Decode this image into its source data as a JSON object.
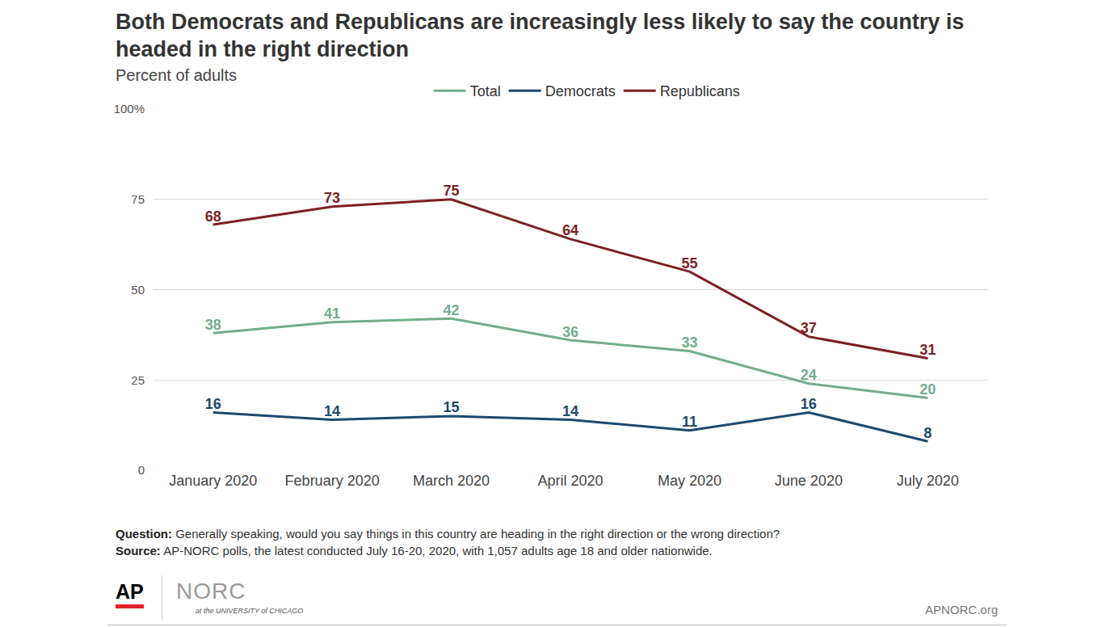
{
  "chart_data": {
    "type": "line",
    "title": "Both Democrats and Republicans are increasingly less likely to say the country is headed in the right direction",
    "subtitle": "Percent of adults",
    "categories": [
      "January 2020",
      "February 2020",
      "March 2020",
      "April 2020",
      "May 2020",
      "June 2020",
      "July 2020"
    ],
    "series": [
      {
        "name": "Total",
        "color": "#72ad8c",
        "values": [
          38,
          41,
          42,
          36,
          33,
          24,
          20
        ]
      },
      {
        "name": "Democrats",
        "color": "#1c4a6e",
        "values": [
          16,
          14,
          15,
          14,
          11,
          16,
          8
        ]
      },
      {
        "name": "Republicans",
        "color": "#7d1f24",
        "values": [
          68,
          73,
          75,
          64,
          55,
          37,
          31
        ]
      }
    ],
    "ylim": [
      0,
      100
    ],
    "yticks": [
      0,
      25,
      50,
      75,
      {
        "value": 100,
        "label": "100%"
      }
    ],
    "grid": true,
    "data_labels": true,
    "legend": "top",
    "notes": [
      {
        "label": "Question:",
        "text": "Generally speaking, would you say things in this country are heading in the right direction or the wrong direction?"
      },
      {
        "label": "Source:",
        "text": "AP-NORC polls, the latest conducted July 16-20, 2020, with 1,057 adults age 18 and older nationwide."
      }
    ],
    "logos": [
      "AP",
      "NORC",
      "at the UNIVERSITY of CHICAGO"
    ],
    "site": "APNORC.org"
  }
}
